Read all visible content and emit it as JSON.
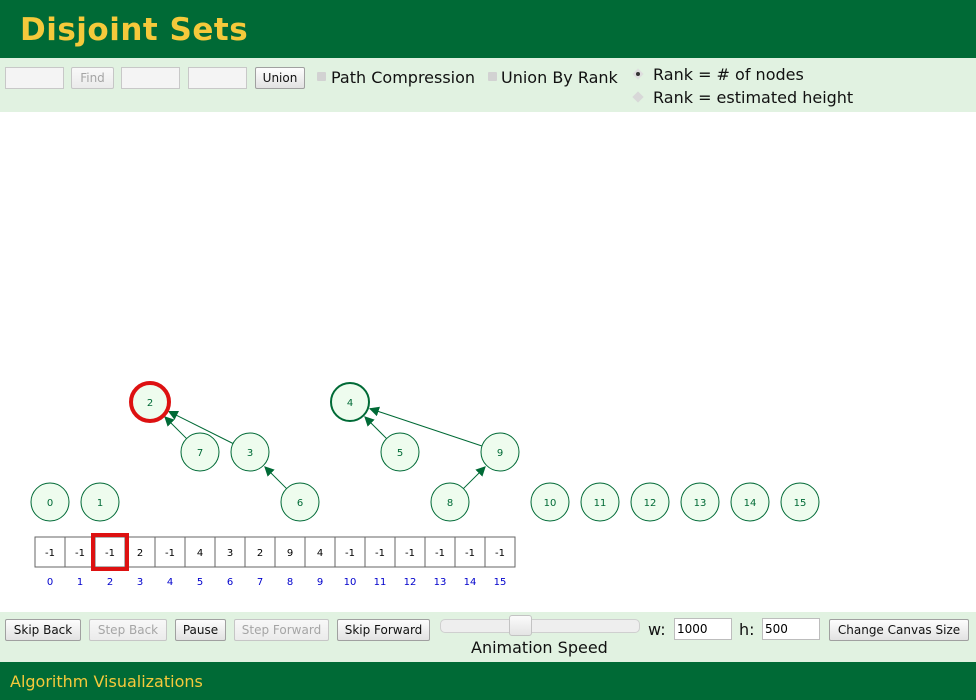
{
  "header": {
    "title": "Disjoint Sets"
  },
  "toolbar": {
    "find_input_value": "",
    "find_label": "Find",
    "union_input1_value": "",
    "union_input2_value": "",
    "union_label": "Union",
    "path_compression_label": "Path Compression",
    "path_compression_checked": false,
    "union_by_rank_label": "Union By Rank",
    "union_by_rank_checked": false,
    "rank_nodes_label": "Rank = # of nodes",
    "rank_nodes_selected": true,
    "rank_height_label": "Rank = estimated height",
    "rank_height_selected": false
  },
  "visualization": {
    "nodes": [
      {
        "id": 0,
        "label": "0"
      },
      {
        "id": 1,
        "label": "1"
      },
      {
        "id": 2,
        "label": "2",
        "root": true,
        "highlighted": true
      },
      {
        "id": 3,
        "label": "3",
        "parent": 2
      },
      {
        "id": 4,
        "label": "4",
        "root": true
      },
      {
        "id": 5,
        "label": "5",
        "parent": 4
      },
      {
        "id": 6,
        "label": "6",
        "parent": 3
      },
      {
        "id": 7,
        "label": "7",
        "parent": 2
      },
      {
        "id": 8,
        "label": "8",
        "parent": 9
      },
      {
        "id": 9,
        "label": "9",
        "parent": 4
      },
      {
        "id": 10,
        "label": "10"
      },
      {
        "id": 11,
        "label": "11"
      },
      {
        "id": 12,
        "label": "12"
      },
      {
        "id": 13,
        "label": "13"
      },
      {
        "id": 14,
        "label": "14"
      },
      {
        "id": 15,
        "label": "15"
      }
    ],
    "array_values": [
      "-1",
      "-1",
      "-1",
      "2",
      "-1",
      "4",
      "3",
      "2",
      "9",
      "4",
      "-1",
      "-1",
      "-1",
      "-1",
      "-1",
      "-1"
    ],
    "array_indices": [
      "0",
      "1",
      "2",
      "3",
      "4",
      "5",
      "6",
      "7",
      "8",
      "9",
      "10",
      "11",
      "12",
      "13",
      "14",
      "15"
    ],
    "highlighted_cell": 2
  },
  "controls": {
    "skip_back_label": "Skip Back",
    "step_back_label": "Step Back",
    "pause_label": "Pause",
    "step_forward_label": "Step Forward",
    "skip_forward_label": "Skip Forward",
    "animation_speed_label": "Animation Speed",
    "animation_speed_value": 0.4,
    "width_label": "w:",
    "width_value": "1000",
    "height_label": "h:",
    "height_value": "500",
    "change_canvas_label": "Change Canvas Size"
  },
  "footer": {
    "text": "Algorithm Visualizations"
  },
  "colors": {
    "header_bg": "#006a36",
    "title_color": "#f5c93b",
    "panel_bg": "#e1f2e1",
    "node_fill": "#eefcee",
    "node_stroke": "#006a36",
    "highlight": "#dd1111",
    "index_color": "#0000cc"
  }
}
